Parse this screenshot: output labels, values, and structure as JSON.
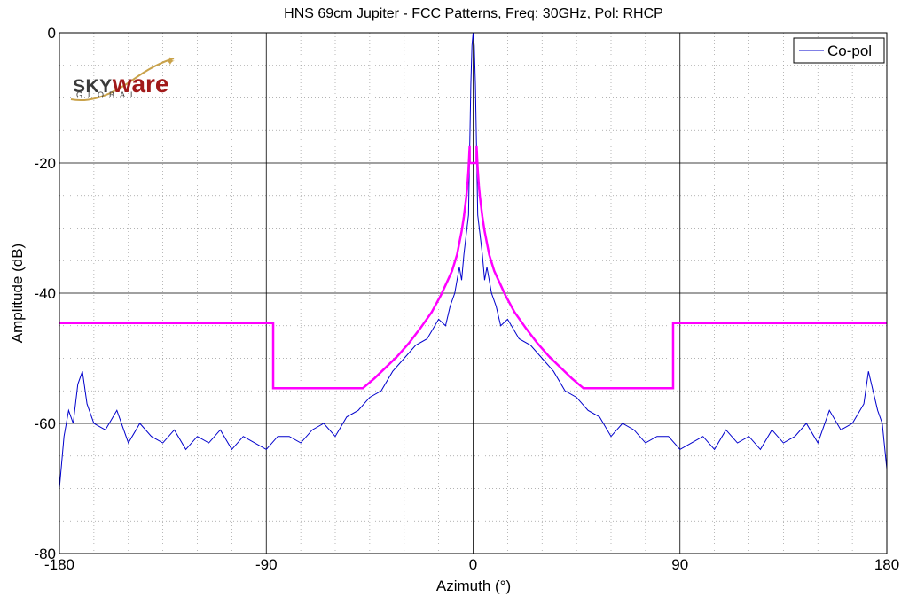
{
  "chart_data": {
    "type": "line",
    "title": "HNS 69cm Jupiter - FCC Patterns, Freq: 30GHz, Pol: RHCP",
    "xlabel": "Azimuth (°)",
    "ylabel": "Amplitude (dB)",
    "xlim": [
      -180,
      180
    ],
    "ylim": [
      -80,
      0
    ],
    "xticks": [
      -180,
      -90,
      0,
      90,
      180
    ],
    "yticks": [
      0,
      -20,
      -40,
      -60,
      -80
    ],
    "xtick_labels": [
      "-180",
      "-90",
      "0",
      "90",
      "180"
    ],
    "ytick_labels": [
      "0",
      "-20",
      "-40",
      "-60",
      "-80"
    ],
    "grid": true,
    "legend_position": "top-right",
    "series": [
      {
        "name": "Co-pol",
        "color": "#0000cc",
        "x": [
          -180,
          -178,
          -176,
          -174,
          -172,
          -170,
          -168,
          -165,
          -160,
          -155,
          -150,
          -145,
          -140,
          -135,
          -130,
          -125,
          -120,
          -115,
          -110,
          -105,
          -100,
          -95,
          -90,
          -85,
          -80,
          -75,
          -70,
          -65,
          -60,
          -55,
          -50,
          -45,
          -40,
          -35,
          -30,
          -25,
          -20,
          -15,
          -12,
          -10,
          -8,
          -6,
          -5,
          -4,
          -3,
          -2,
          -1.5,
          -1,
          -0.5,
          0,
          0.5,
          1,
          1.5,
          2,
          3,
          4,
          5,
          6,
          8,
          10,
          12,
          15,
          20,
          25,
          30,
          35,
          40,
          45,
          50,
          55,
          60,
          65,
          70,
          75,
          80,
          85,
          90,
          95,
          100,
          105,
          110,
          115,
          120,
          125,
          130,
          135,
          140,
          145,
          150,
          155,
          160,
          165,
          170,
          172,
          174,
          176,
          178,
          180
        ],
        "y": [
          -70,
          -62,
          -58,
          -60,
          -54,
          -52,
          -57,
          -60,
          -61,
          -58,
          -63,
          -60,
          -62,
          -63,
          -61,
          -64,
          -62,
          -63,
          -61,
          -64,
          -62,
          -63,
          -64,
          -62,
          -62,
          -63,
          -61,
          -60,
          -62,
          -59,
          -58,
          -56,
          -55,
          -52,
          -50,
          -48,
          -47,
          -44,
          -45,
          -42,
          -40,
          -36,
          -38,
          -34,
          -31,
          -28,
          -18,
          -8,
          -2,
          0,
          -2,
          -8,
          -18,
          -28,
          -31,
          -34,
          -38,
          -36,
          -40,
          -42,
          -45,
          -44,
          -47,
          -48,
          -50,
          -52,
          -55,
          -56,
          -58,
          -59,
          -62,
          -60,
          -61,
          -63,
          -62,
          -62,
          -64,
          -63,
          -62,
          -64,
          -61,
          -63,
          -62,
          -64,
          -61,
          -63,
          -62,
          -60,
          -63,
          -58,
          -61,
          -60,
          -57,
          -52,
          -55,
          -58,
          -60,
          -67
        ]
      },
      {
        "name": "",
        "color": "#ff00ff",
        "x": [
          -180,
          -87,
          -87,
          -48,
          -43,
          -38,
          -33,
          -28,
          -23,
          -18,
          -14,
          -11,
          -9.2,
          -9.2,
          -7,
          -5,
          -4,
          -3,
          -2.5,
          -2,
          -1.5,
          -1.5,
          1.5,
          1.5,
          2,
          2.5,
          3,
          4,
          5,
          7,
          9.2,
          9.2,
          11,
          14,
          18,
          23,
          28,
          33,
          38,
          43,
          48,
          87,
          87,
          180
        ],
        "y": [
          -44.6,
          -44.6,
          -54.6,
          -54.6,
          -53.1,
          -51.4,
          -49.7,
          -47.7,
          -45.4,
          -42.9,
          -40.3,
          -38.0,
          -36.6,
          -36.6,
          -34.1,
          -30.5,
          -28.2,
          -25.3,
          -23.5,
          -21.0,
          -17.4,
          -20.0,
          -20.0,
          -17.4,
          -21.0,
          -23.5,
          -25.3,
          -28.2,
          -30.5,
          -34.1,
          -36.6,
          -36.6,
          -38.0,
          -40.3,
          -42.9,
          -45.4,
          -47.7,
          -49.7,
          -51.4,
          -53.1,
          -54.6,
          -54.6,
          -44.6,
          -44.6
        ]
      }
    ]
  },
  "logo": {
    "brand_part1": "SKY",
    "brand_part2": "ware",
    "tagline": "GLOBAL"
  },
  "colors": {
    "copol": "#0000cc",
    "mask": "#ff00ff",
    "logo_red": "#a11a1a"
  }
}
